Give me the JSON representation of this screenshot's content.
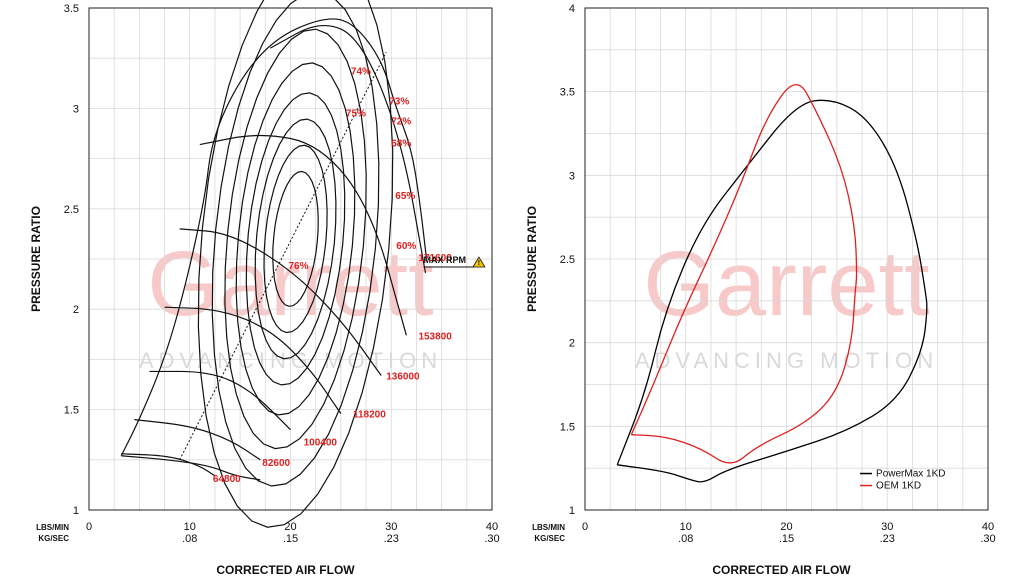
{
  "chart_data": [
    {
      "type": "compressor-map",
      "xlabel": "CORRECTED AIR FLOW",
      "ylabel": "PRESSURE RATIO",
      "xunit_primary": "LBS/MIN",
      "xunit_secondary": "KG/SEC",
      "xlim": [
        0,
        40
      ],
      "ylim": [
        1,
        3.5
      ],
      "xticks": [
        "0",
        "10",
        "20",
        "30",
        "40"
      ],
      "xticks_secondary": [
        ".08",
        ".15",
        ".23",
        ".30"
      ],
      "yticks": [
        "1",
        "1.5",
        "2",
        "2.5",
        "3",
        "3.5"
      ],
      "grid": true,
      "surge_line": [
        [
          3.2,
          1.27
        ],
        [
          5,
          1.45
        ],
        [
          7.5,
          1.75
        ],
        [
          9.5,
          2.1
        ],
        [
          11.5,
          2.55
        ],
        [
          12.2,
          2.85
        ],
        [
          15,
          3.15
        ],
        [
          18.5,
          3.35
        ],
        [
          23,
          3.45
        ],
        [
          26,
          3.44
        ],
        [
          29,
          3.25
        ],
        [
          30.5,
          3.0
        ],
        [
          32,
          2.8
        ],
        [
          32.8,
          2.55
        ],
        [
          33.5,
          2.25
        ]
      ],
      "choke_line": [
        [
          3.2,
          1.27
        ],
        [
          8,
          1.25
        ],
        [
          12,
          1.22
        ],
        [
          14.5,
          1.17
        ],
        [
          17,
          1.15
        ]
      ],
      "speed_lines": [
        {
          "label": "64800",
          "points": [
            [
              3.2,
              1.28
            ],
            [
              8,
              1.27
            ],
            [
              11,
              1.22
            ],
            [
              12.5,
              1.17
            ]
          ],
          "label_xy": [
            12.3,
            1.14
          ]
        },
        {
          "label": "82600",
          "points": [
            [
              4.5,
              1.45
            ],
            [
              10,
              1.42
            ],
            [
              14,
              1.35
            ],
            [
              17,
              1.25
            ]
          ],
          "label_xy": [
            17.2,
            1.22
          ]
        },
        {
          "label": "100400",
          "points": [
            [
              6,
              1.69
            ],
            [
              12,
              1.69
            ],
            [
              16,
              1.6
            ],
            [
              20,
              1.4
            ]
          ],
          "label_xy": [
            21.3,
            1.32
          ]
        },
        {
          "label": "118200",
          "points": [
            [
              7.5,
              2.01
            ],
            [
              13,
              2.0
            ],
            [
              18,
              1.9
            ],
            [
              22,
              1.7
            ],
            [
              25,
              1.48
            ]
          ],
          "label_xy": [
            26.2,
            1.46
          ]
        },
        {
          "label": "136000",
          "points": [
            [
              9,
              2.4
            ],
            [
              14,
              2.38
            ],
            [
              20,
              2.2
            ],
            [
              25,
              1.95
            ],
            [
              29,
              1.67
            ]
          ],
          "label_xy": [
            29.5,
            1.65
          ]
        },
        {
          "label": "153800",
          "points": [
            [
              11,
              2.82
            ],
            [
              17,
              2.88
            ],
            [
              23,
              2.82
            ],
            [
              28,
              2.5
            ],
            [
              31.5,
              1.87
            ]
          ],
          "label_xy": [
            32.7,
            1.85
          ]
        },
        {
          "label": "171600",
          "points": [
            [
              18,
              3.3
            ],
            [
              23,
              3.44
            ],
            [
              27,
              3.35
            ],
            [
              31,
              2.85
            ],
            [
              33.4,
              2.18
            ]
          ],
          "label_xy": [
            32.7,
            2.24
          ]
        }
      ],
      "efficiency_islands": [
        {
          "label": "76%",
          "label_xy": [
            19.8,
            2.2
          ]
        },
        {
          "label": "75%",
          "label_xy": [
            25.5,
            2.96
          ]
        },
        {
          "label": "74%",
          "label_xy": [
            26,
            3.17
          ]
        },
        {
          "label": "73%",
          "label_xy": [
            29.8,
            3.02
          ]
        },
        {
          "label": "72%",
          "label_xy": [
            30,
            2.92
          ]
        },
        {
          "label": "68%",
          "label_xy": [
            30,
            2.81
          ]
        },
        {
          "label": "65%",
          "label_xy": [
            30.4,
            2.55
          ]
        },
        {
          "label": "60%",
          "label_xy": [
            30.5,
            2.3
          ]
        }
      ],
      "max_rpm_label": "MAX RPM"
    },
    {
      "type": "line",
      "xlabel": "CORRECTED AIR FLOW",
      "ylabel": "PRESSURE RATIO",
      "xunit_primary": "LBS/MIN",
      "xunit_secondary": "KG/SEC",
      "xlim": [
        0,
        40
      ],
      "ylim": [
        1,
        4
      ],
      "xticks": [
        "0",
        "10",
        "20",
        "30",
        "40"
      ],
      "xticks_secondary": [
        ".08",
        ".15",
        ".23",
        ".30"
      ],
      "yticks": [
        "1",
        "1.5",
        "2",
        "2.5",
        "3",
        "3.5",
        "4"
      ],
      "grid": true,
      "legend_position": "bottom-right",
      "series": [
        {
          "name": "PowerMax 1KD",
          "color": "#000000",
          "points": [
            [
              3.2,
              1.27
            ],
            [
              6,
              1.7
            ],
            [
              8,
              2.2
            ],
            [
              11.5,
              2.7
            ],
            [
              16,
              3.05
            ],
            [
              21,
              3.43
            ],
            [
              24.5,
              3.46
            ],
            [
              28,
              3.35
            ],
            [
              31,
              3.05
            ],
            [
              33,
              2.6
            ],
            [
              33.8,
              2.3
            ],
            [
              34,
              2.2
            ],
            [
              33.5,
              1.95
            ],
            [
              31,
              1.65
            ],
            [
              26,
              1.47
            ],
            [
              20,
              1.35
            ],
            [
              14,
              1.24
            ],
            [
              11.8,
              1.16
            ],
            [
              10.5,
              1.18
            ],
            [
              8,
              1.23
            ],
            [
              3.2,
              1.27
            ]
          ]
        },
        {
          "name": "OEM 1KD",
          "color": "#e02020",
          "points": [
            [
              4.6,
              1.45
            ],
            [
              6.8,
              1.75
            ],
            [
              9.5,
              2.15
            ],
            [
              13,
              2.6
            ],
            [
              15.5,
              2.95
            ],
            [
              18,
              3.35
            ],
            [
              21,
              3.6
            ],
            [
              23,
              3.38
            ],
            [
              25.5,
              3.05
            ],
            [
              26.8,
              2.7
            ],
            [
              27,
              2.4
            ],
            [
              26.8,
              2.3
            ],
            [
              26.5,
              2.0
            ],
            [
              25,
              1.7
            ],
            [
              22,
              1.52
            ],
            [
              17,
              1.38
            ],
            [
              14.5,
              1.25
            ],
            [
              11.5,
              1.37
            ],
            [
              8,
              1.44
            ],
            [
              4.6,
              1.45
            ]
          ]
        }
      ]
    }
  ],
  "watermark": {
    "main": "Garrett",
    "sub": "ADVANCING MOTION"
  }
}
